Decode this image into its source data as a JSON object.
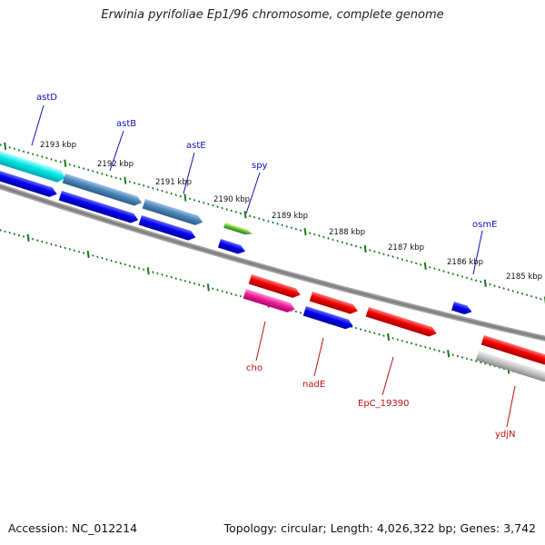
{
  "title": "Erwinia pyrifoliae Ep1/96 chromosome, complete genome",
  "footer": {
    "accession": "Accession: NC_012214",
    "summary": "Topology: circular; Length: 4,026,322 bp; Genes: 3,742"
  },
  "colors": {
    "backbone": "#808080",
    "tick": "#1a7a1a",
    "plus_label": "#1010c0",
    "minus_label": "#c01010"
  },
  "kbp_labels": [
    "2193 kbp",
    "2192 kbp",
    "2191 kbp",
    "2190 kbp",
    "2189 kbp",
    "2188 kbp",
    "2187 kbp",
    "2186 kbp",
    "2185 kbp"
  ],
  "gene_labels_top": [
    "astD",
    "astB",
    "astE",
    "spy",
    "osmE"
  ],
  "gene_labels_bottom": [
    "cho",
    "nadE",
    "EpC_19390",
    "ydjN"
  ]
}
